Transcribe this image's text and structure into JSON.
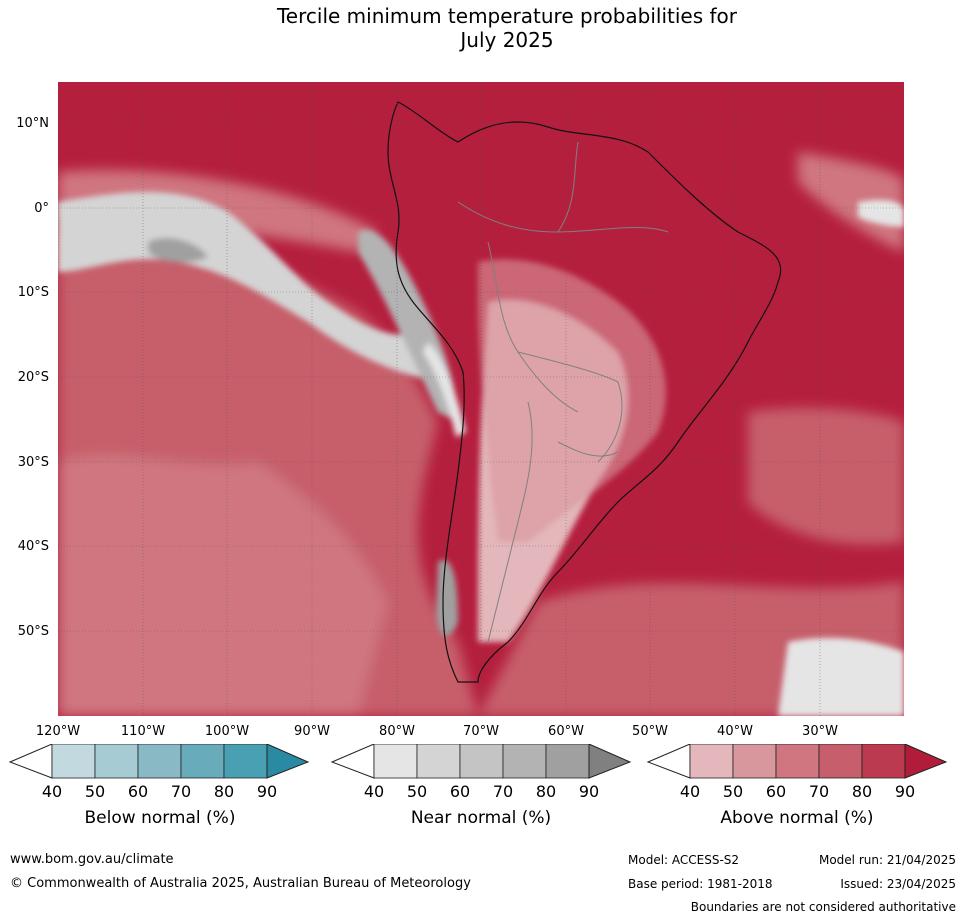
{
  "title_line1": "Tercile minimum temperature probabilities for",
  "title_line2": "July 2025",
  "lat_labels": [
    "10°N",
    "0°",
    "10°S",
    "20°S",
    "30°S",
    "40°S",
    "50°S"
  ],
  "lon_labels": [
    "120°W",
    "110°W",
    "100°W",
    "90°W",
    "80°W",
    "70°W",
    "60°W",
    "50°W",
    "40°W",
    "30°W"
  ],
  "colorbars": {
    "below": {
      "label": "Below normal (%)",
      "ticks": [
        "40",
        "50",
        "60",
        "70",
        "80",
        "90"
      ],
      "colors": [
        "#c1d9df",
        "#a7cbd3",
        "#8ab9c6",
        "#68abbb",
        "#4aa0b3",
        "#2a8aa2"
      ]
    },
    "near": {
      "label": "Near normal (%)",
      "ticks": [
        "40",
        "50",
        "60",
        "70",
        "80",
        "90"
      ],
      "colors": [
        "#e5e5e5",
        "#d4d4d4",
        "#c4c4c4",
        "#b3b3b3",
        "#a0a0a0",
        "#808080"
      ]
    },
    "above": {
      "label": "Above normal (%)",
      "ticks": [
        "40",
        "50",
        "60",
        "70",
        "80",
        "90"
      ],
      "colors": [
        "#e3b7bb",
        "#d8969d",
        "#cf7680",
        "#c65e6b",
        "#bb3a4f",
        "#b01c3a"
      ]
    }
  },
  "footer": {
    "website": "www.bom.gov.au/climate",
    "copyright": "© Commonwealth of Australia 2025, Australian Bureau of Meteorology",
    "model": "Model: ACCESS-S2",
    "model_run": "Model run: 21/04/2025",
    "base_period": "Base period: 1981-2018",
    "issued": "Issued: 23/04/2025",
    "disclaimer": "Boundaries are not considered authoritative"
  }
}
